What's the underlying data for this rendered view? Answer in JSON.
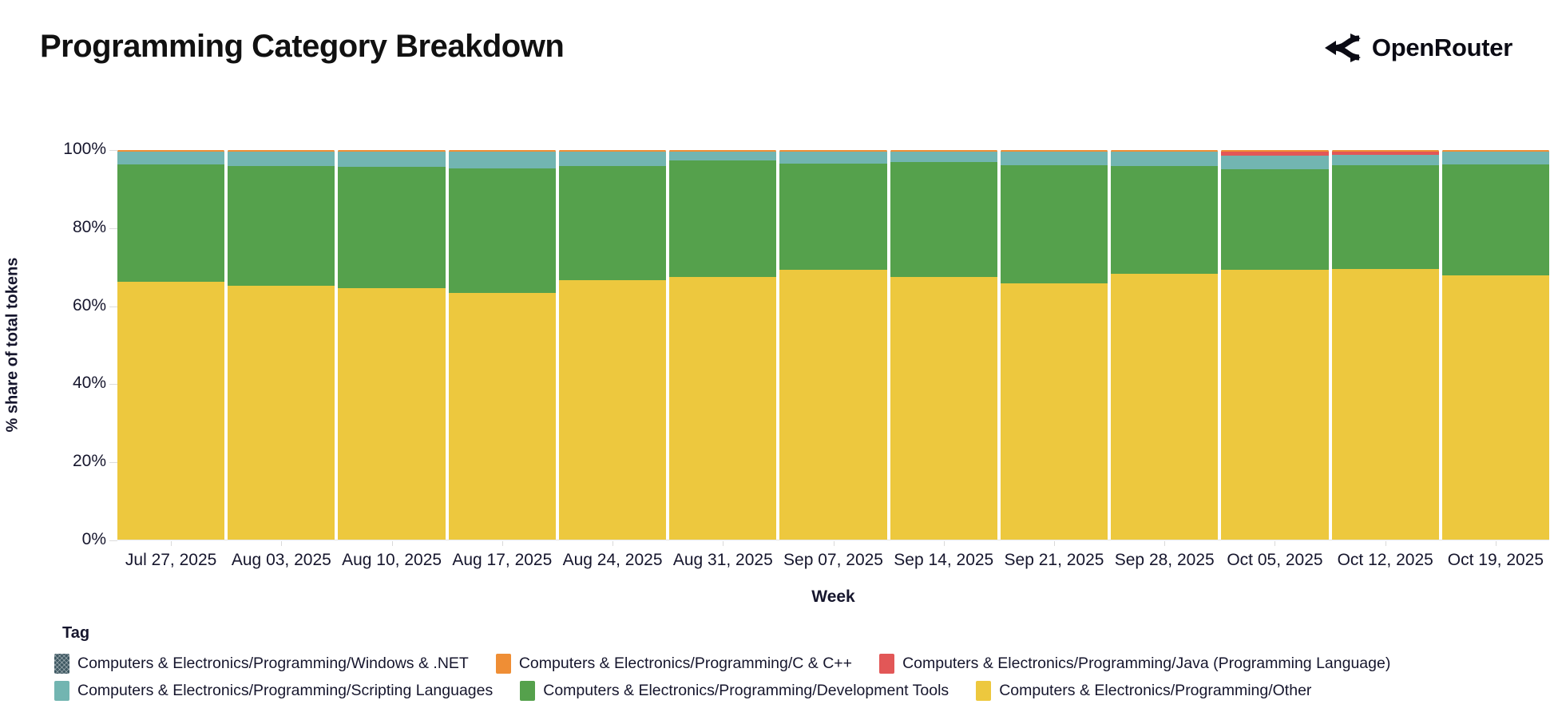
{
  "header": {
    "title": "Programming Category Breakdown",
    "brand": "OpenRouter"
  },
  "chart_data": {
    "type": "bar",
    "stacked": true,
    "normalized": "percent",
    "title": "Programming Category Breakdown",
    "xlabel": "Week",
    "ylabel": "% share of total tokens",
    "ylim": [
      0,
      100
    ],
    "yticks": [
      "0%",
      "20%",
      "40%",
      "60%",
      "80%",
      "100%"
    ],
    "grid": false,
    "legend_position": "bottom",
    "x": [
      "Jul 27, 2025",
      "Aug 03, 2025",
      "Aug 10, 2025",
      "Aug 17, 2025",
      "Aug 24, 2025",
      "Aug 31, 2025",
      "Sep 07, 2025",
      "Sep 14, 2025",
      "Sep 21, 2025",
      "Sep 28, 2025",
      "Oct 05, 2025",
      "Oct 12, 2025",
      "Oct 19, 2025"
    ],
    "series": [
      {
        "name": "Computers & Electronics/Programming/Other",
        "color": "#edc83e",
        "values": [
          66.2,
          65.2,
          64.6,
          63.4,
          66.5,
          67.5,
          69.2,
          67.4,
          65.8,
          68.3,
          69.3,
          69.5,
          67.9
        ]
      },
      {
        "name": "Computers & Electronics/Programming/Development Tools",
        "color": "#55a14c",
        "values": [
          30.2,
          30.7,
          31.2,
          31.8,
          29.5,
          29.8,
          27.3,
          29.6,
          30.4,
          27.6,
          25.7,
          26.6,
          28.5
        ]
      },
      {
        "name": "Computers & Electronics/Programming/Scripting Languages",
        "color": "#72b5b1",
        "values": [
          3.2,
          3.7,
          3.8,
          4.4,
          3.6,
          2.3,
          3.1,
          2.6,
          3.4,
          3.7,
          3.6,
          2.6,
          3.15
        ]
      },
      {
        "name": "Computers & Electronics/Programming/Java (Programming Language)",
        "color": "#e25757",
        "values": [
          0.05,
          0.05,
          0.05,
          0.05,
          0.05,
          0.05,
          0.05,
          0.05,
          0.05,
          0.05,
          1.0,
          0.9,
          0.05
        ]
      },
      {
        "name": "Computers & Electronics/Programming/C & C++",
        "color": "#ef8e35",
        "values": [
          0.3,
          0.3,
          0.3,
          0.3,
          0.3,
          0.3,
          0.3,
          0.3,
          0.3,
          0.3,
          0.35,
          0.35,
          0.35
        ]
      },
      {
        "name": "Computers & Electronics/Programming/Windows & .NET",
        "color": "#3e5862",
        "values": [
          0.05,
          0.05,
          0.05,
          0.05,
          0.05,
          0.05,
          0.05,
          0.05,
          0.05,
          0.05,
          0.05,
          0.05,
          0.05
        ]
      }
    ]
  },
  "legend": {
    "title": "Tag",
    "items": [
      {
        "label": "Computers & Electronics/Programming/Windows & .NET",
        "color": "#3e5862",
        "hatch": true,
        "row": 0
      },
      {
        "label": "Computers & Electronics/Programming/C & C++",
        "color": "#ef8e35",
        "hatch": false,
        "row": 0
      },
      {
        "label": "Computers & Electronics/Programming/Java (Programming Language)",
        "color": "#e25757",
        "hatch": false,
        "row": 0
      },
      {
        "label": "Computers & Electronics/Programming/Scripting Languages",
        "color": "#72b5b1",
        "hatch": false,
        "row": 1
      },
      {
        "label": "Computers & Electronics/Programming/Development Tools",
        "color": "#55a14c",
        "hatch": false,
        "row": 1
      },
      {
        "label": "Computers & Electronics/Programming/Other",
        "color": "#edc83e",
        "hatch": false,
        "row": 1
      }
    ]
  }
}
